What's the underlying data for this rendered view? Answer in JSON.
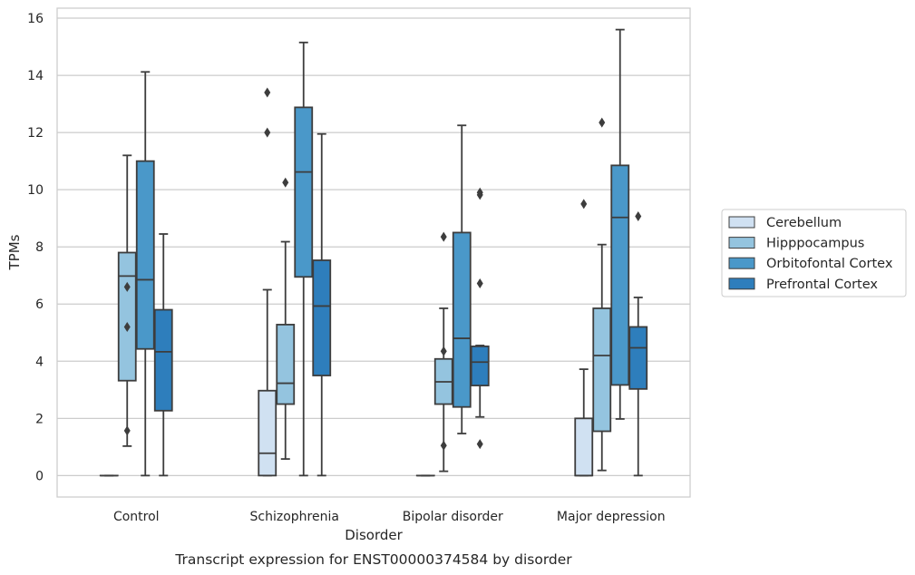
{
  "chart_data": {
    "type": "boxplot",
    "caption": "Transcript expression for ENST00000374584 by disorder",
    "xlabel": "Disorder",
    "ylabel": "TPMs",
    "ylim": [
      -0.75,
      16.35
    ],
    "yticks": [
      0,
      2,
      4,
      6,
      8,
      10,
      12,
      14,
      16
    ],
    "grid": "horizontal",
    "legend_position": "right",
    "categories": [
      "Control",
      "Schizophrenia",
      "Bipolar disorder",
      "Major depression"
    ],
    "series": [
      {
        "name": "Cerebellum",
        "color": "#d0e1f2",
        "boxes": [
          {
            "whislo": 0,
            "q1": 0,
            "med": 0,
            "q3": 0,
            "whishi": 0,
            "fliers": []
          },
          {
            "whislo": 0,
            "q1": 0,
            "med": 0.78,
            "q3": 2.97,
            "whishi": 6.5,
            "fliers": [
              12.0,
              13.4
            ]
          },
          {
            "whislo": 0,
            "q1": 0,
            "med": 0,
            "q3": 0,
            "whishi": 0,
            "fliers": []
          },
          {
            "whislo": 0,
            "q1": 0,
            "med": 0,
            "q3": 2.0,
            "whishi": 3.72,
            "fliers": [
              9.5
            ]
          }
        ]
      },
      {
        "name": "Hipppocampus",
        "color": "#94c4df",
        "boxes": [
          {
            "whislo": 1.03,
            "q1": 3.32,
            "med": 6.98,
            "q3": 7.8,
            "whishi": 11.2,
            "fliers": [
              1.57,
              5.2,
              6.6
            ]
          },
          {
            "whislo": 0.58,
            "q1": 2.5,
            "med": 3.23,
            "q3": 5.28,
            "whishi": 8.18,
            "fliers": [
              10.25
            ]
          },
          {
            "whislo": 0.15,
            "q1": 2.5,
            "med": 3.28,
            "q3": 4.08,
            "whishi": 5.85,
            "fliers": [
              1.05,
              4.35,
              8.35
            ]
          },
          {
            "whislo": 0.18,
            "q1": 1.55,
            "med": 4.2,
            "q3": 5.85,
            "whishi": 8.08,
            "fliers": [
              12.35
            ]
          }
        ]
      },
      {
        "name": "Orbitofontal Cortex",
        "color": "#4a98c9",
        "boxes": [
          {
            "whislo": 0,
            "q1": 4.43,
            "med": 6.85,
            "q3": 11.0,
            "whishi": 14.12,
            "fliers": []
          },
          {
            "whislo": 0,
            "q1": 6.95,
            "med": 10.62,
            "q3": 12.88,
            "whishi": 15.15,
            "fliers": []
          },
          {
            "whislo": 1.47,
            "q1": 2.4,
            "med": 4.8,
            "q3": 8.5,
            "whishi": 12.25,
            "fliers": []
          },
          {
            "whislo": 1.98,
            "q1": 3.17,
            "med": 9.03,
            "q3": 10.85,
            "whishi": 15.6,
            "fliers": []
          }
        ]
      },
      {
        "name": "Prefrontal Cortex",
        "color": "#2e7ebc",
        "boxes": [
          {
            "whislo": 0,
            "q1": 2.27,
            "med": 4.33,
            "q3": 5.8,
            "whishi": 8.45,
            "fliers": []
          },
          {
            "whislo": 0,
            "q1": 3.5,
            "med": 5.93,
            "q3": 7.53,
            "whishi": 11.95,
            "fliers": []
          },
          {
            "whislo": 2.05,
            "q1": 3.15,
            "med": 3.97,
            "q3": 4.52,
            "whishi": 4.55,
            "fliers": [
              1.1,
              6.72,
              9.82,
              9.9
            ]
          },
          {
            "whislo": 0,
            "q1": 3.03,
            "med": 4.47,
            "q3": 5.2,
            "whishi": 6.23,
            "fliers": [
              9.07
            ]
          }
        ]
      }
    ]
  }
}
